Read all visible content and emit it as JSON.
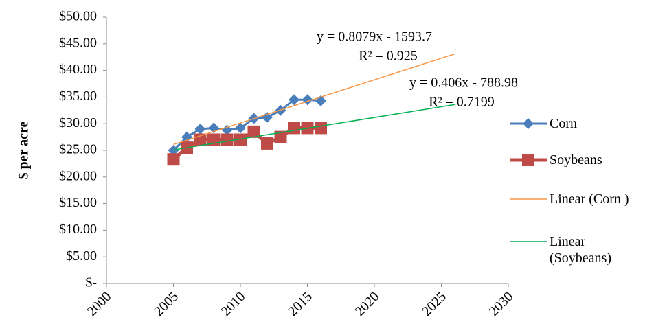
{
  "chart_data": {
    "type": "scatter-line",
    "y_label": "$ per acre",
    "xlim": [
      2000,
      2030
    ],
    "xticks": [
      2000,
      2005,
      2010,
      2015,
      2020,
      2025,
      2030
    ],
    "ylim": [
      0,
      50
    ],
    "yticks": [
      {
        "value": 0,
        "label": "$-"
      },
      {
        "value": 5,
        "label": "$5.00"
      },
      {
        "value": 10,
        "label": "$10.00"
      },
      {
        "value": 15,
        "label": "$15.00"
      },
      {
        "value": 20,
        "label": "$20.00"
      },
      {
        "value": 25,
        "label": "$25.00"
      },
      {
        "value": 30,
        "label": "$30.00"
      },
      {
        "value": 35,
        "label": "$35.00"
      },
      {
        "value": 40,
        "label": "$40.00"
      },
      {
        "value": 45,
        "label": "$45.00"
      },
      {
        "value": 50,
        "label": "$50.00"
      }
    ],
    "grid": false,
    "series": [
      {
        "name": "Corn",
        "color": "#4a7ebb",
        "marker": "diamond",
        "x": [
          2005,
          2006,
          2007,
          2008,
          2009,
          2010,
          2011,
          2012,
          2013,
          2014,
          2015,
          2016
        ],
        "values": [
          25,
          27.5,
          29,
          29.2,
          28.8,
          29.2,
          31,
          31.2,
          32.5,
          34.5,
          34.5,
          34.3
        ]
      },
      {
        "name": "Soybeans",
        "color": "#be4b48",
        "marker": "square",
        "x": [
          2005,
          2006,
          2007,
          2008,
          2009,
          2010,
          2011,
          2012,
          2013,
          2014,
          2015,
          2016
        ],
        "values": [
          23.3,
          25.5,
          27,
          27,
          27,
          27,
          28.5,
          26.3,
          27.5,
          29.2,
          29.2,
          29.2
        ]
      },
      {
        "name": "Linear (Corn )",
        "color": "#f79646",
        "x": [
          2005,
          2026
        ],
        "values": [
          26.1,
          43.1
        ]
      },
      {
        "name": "Linear (Soybeans)",
        "color": "#00b050",
        "x": [
          2005,
          2026
        ],
        "values": [
          25.1,
          33.6
        ]
      }
    ],
    "annotations": [
      "y = 0.8079x - 1593.7",
      "R² = 0.925",
      "y = 0.406x - 788.98",
      "R² = 0.7199"
    ]
  }
}
